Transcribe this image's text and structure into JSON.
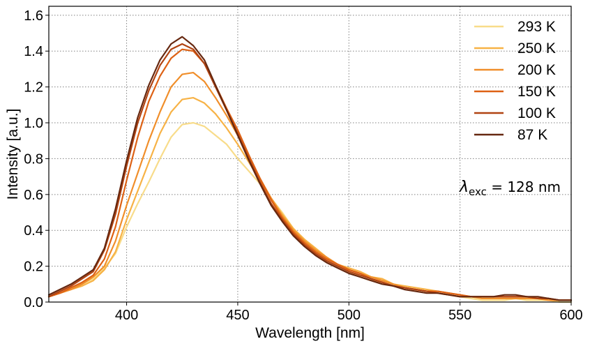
{
  "chart_data": {
    "type": "line",
    "xlabel": "Wavelength [nm]",
    "ylabel": "Intensity [a.u.]",
    "xlim": [
      365,
      600
    ],
    "ylim": [
      0,
      1.65
    ],
    "xticks": [
      400,
      450,
      500,
      550,
      600
    ],
    "xtick_labels": [
      "400",
      "450",
      "500",
      "550",
      "600"
    ],
    "yticks": [
      0.0,
      0.2,
      0.4,
      0.6,
      0.8,
      1.0,
      1.2,
      1.4,
      1.6
    ],
    "ytick_labels": [
      "0.0",
      "0.2",
      "0.4",
      "0.6",
      "0.8",
      "1.0",
      "1.2",
      "1.4",
      "1.6"
    ],
    "grid": true,
    "legend_position": "top-right",
    "annotation": {
      "symbol": "λ",
      "subscript": "exc",
      "text": " = 128 nm"
    },
    "x": [
      365,
      370,
      375,
      380,
      385,
      390,
      395,
      400,
      405,
      410,
      415,
      420,
      425,
      430,
      435,
      440,
      445,
      450,
      455,
      460,
      465,
      470,
      475,
      480,
      485,
      490,
      495,
      500,
      505,
      510,
      515,
      520,
      525,
      530,
      535,
      540,
      545,
      550,
      555,
      560,
      565,
      570,
      575,
      580,
      585,
      590,
      595,
      600
    ],
    "series": [
      {
        "name": "293 K",
        "color": "#f8dc8a",
        "values": [
          0.03,
          0.05,
          0.08,
          0.1,
          0.13,
          0.19,
          0.27,
          0.42,
          0.55,
          0.67,
          0.8,
          0.92,
          0.99,
          1.0,
          0.98,
          0.93,
          0.88,
          0.8,
          0.73,
          0.66,
          0.58,
          0.5,
          0.41,
          0.34,
          0.29,
          0.23,
          0.2,
          0.17,
          0.14,
          0.12,
          0.11,
          0.09,
          0.08,
          0.07,
          0.06,
          0.05,
          0.04,
          0.03,
          0.02,
          0.01,
          0.01,
          0.01,
          0.02,
          0.01,
          0.01,
          0.01,
          0.0,
          0.0
        ]
      },
      {
        "name": "250 K",
        "color": "#f7b245",
        "values": [
          0.03,
          0.05,
          0.07,
          0.09,
          0.12,
          0.18,
          0.28,
          0.46,
          0.62,
          0.78,
          0.94,
          1.06,
          1.13,
          1.14,
          1.11,
          1.05,
          0.97,
          0.88,
          0.78,
          0.68,
          0.58,
          0.49,
          0.41,
          0.35,
          0.3,
          0.25,
          0.21,
          0.19,
          0.17,
          0.14,
          0.13,
          0.1,
          0.09,
          0.08,
          0.07,
          0.06,
          0.05,
          0.04,
          0.03,
          0.02,
          0.02,
          0.02,
          0.02,
          0.02,
          0.02,
          0.01,
          0.01,
          0.01
        ]
      },
      {
        "name": "200 K",
        "color": "#f08e2a",
        "values": [
          0.03,
          0.05,
          0.07,
          0.1,
          0.14,
          0.2,
          0.34,
          0.54,
          0.72,
          0.9,
          1.06,
          1.2,
          1.27,
          1.28,
          1.23,
          1.14,
          1.04,
          0.93,
          0.81,
          0.69,
          0.58,
          0.48,
          0.4,
          0.34,
          0.29,
          0.25,
          0.21,
          0.18,
          0.16,
          0.14,
          0.12,
          0.1,
          0.08,
          0.07,
          0.06,
          0.06,
          0.05,
          0.04,
          0.03,
          0.02,
          0.02,
          0.02,
          0.02,
          0.02,
          0.02,
          0.01,
          0.01,
          0.01
        ]
      },
      {
        "name": "150 K",
        "color": "#dd6114",
        "values": [
          0.03,
          0.05,
          0.08,
          0.11,
          0.15,
          0.24,
          0.42,
          0.68,
          0.92,
          1.12,
          1.26,
          1.36,
          1.41,
          1.4,
          1.33,
          1.21,
          1.08,
          0.96,
          0.82,
          0.69,
          0.57,
          0.47,
          0.39,
          0.33,
          0.28,
          0.24,
          0.21,
          0.18,
          0.16,
          0.13,
          0.11,
          0.09,
          0.08,
          0.07,
          0.06,
          0.06,
          0.05,
          0.04,
          0.03,
          0.03,
          0.03,
          0.03,
          0.03,
          0.03,
          0.02,
          0.02,
          0.01,
          0.01
        ]
      },
      {
        "name": "100 K",
        "color": "#b04312",
        "values": [
          0.03,
          0.06,
          0.09,
          0.13,
          0.17,
          0.29,
          0.49,
          0.76,
          1.0,
          1.18,
          1.32,
          1.41,
          1.44,
          1.41,
          1.33,
          1.2,
          1.07,
          0.94,
          0.8,
          0.67,
          0.55,
          0.46,
          0.38,
          0.32,
          0.27,
          0.23,
          0.2,
          0.17,
          0.15,
          0.13,
          0.11,
          0.09,
          0.08,
          0.07,
          0.06,
          0.05,
          0.04,
          0.03,
          0.03,
          0.03,
          0.03,
          0.03,
          0.03,
          0.03,
          0.02,
          0.02,
          0.01,
          0.01
        ]
      },
      {
        "name": "87 K",
        "color": "#662810",
        "values": [
          0.04,
          0.07,
          0.1,
          0.14,
          0.18,
          0.3,
          0.52,
          0.79,
          1.03,
          1.21,
          1.35,
          1.44,
          1.48,
          1.43,
          1.35,
          1.21,
          1.07,
          0.93,
          0.79,
          0.66,
          0.54,
          0.45,
          0.37,
          0.31,
          0.26,
          0.22,
          0.19,
          0.16,
          0.14,
          0.12,
          0.1,
          0.09,
          0.07,
          0.06,
          0.05,
          0.05,
          0.04,
          0.03,
          0.03,
          0.03,
          0.03,
          0.04,
          0.04,
          0.03,
          0.03,
          0.02,
          0.01,
          0.01
        ]
      }
    ]
  }
}
